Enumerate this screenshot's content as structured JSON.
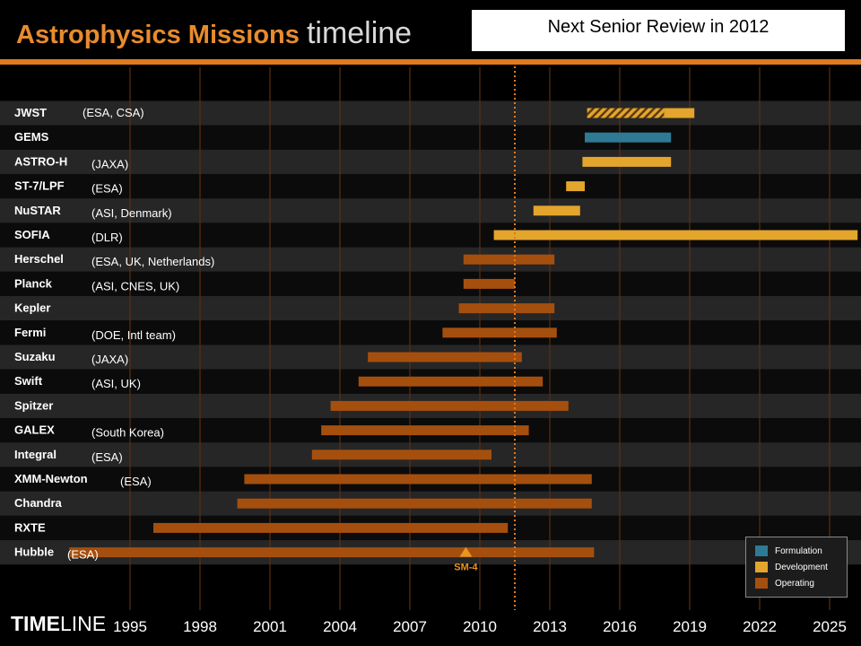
{
  "header": {
    "title_bold": "Astrophysics Missions",
    "title_light": "timeline",
    "review_note": "Next Senior Review in 2012"
  },
  "footer": {
    "logo_bold": "TIME",
    "logo_light": "LINE"
  },
  "colors": {
    "background": "#000000",
    "row_band": "#262626",
    "formulation": "#2e7a94",
    "development": "#e3a52c",
    "operating": "#a54f0e",
    "accent": "#e07a1f"
  },
  "legend": {
    "items": [
      {
        "label": "Formulation",
        "color": "#2e7a94"
      },
      {
        "label": "Development",
        "color": "#e3a52c"
      },
      {
        "label": "Operating",
        "color": "#a54f0e"
      }
    ]
  },
  "chart_data": {
    "type": "bar",
    "title": "Astrophysics Missions timeline",
    "x_ticks": [
      1995,
      1998,
      2001,
      2004,
      2007,
      2010,
      2013,
      2016,
      2019,
      2022,
      2025
    ],
    "xlim": [
      1992.4,
      2026.2
    ],
    "reference_line": {
      "value": 2011.5,
      "style": "dotted"
    },
    "annotations": [
      {
        "label": "SM-4",
        "x": 2009.4,
        "row": "Hubble"
      }
    ],
    "missions": [
      {
        "name": "JWST",
        "partners": "(ESA, CSA)",
        "segments": [
          {
            "phase": "formulation-development",
            "start": 2014.6,
            "end": 2017.9,
            "hatched": true
          },
          {
            "phase": "development",
            "start": 2017.9,
            "end": 2019.2
          }
        ]
      },
      {
        "name": "GEMS",
        "partners": "",
        "segments": [
          {
            "phase": "formulation",
            "start": 2014.5,
            "end": 2018.2
          }
        ]
      },
      {
        "name": "ASTRO-H",
        "partners": "(JAXA)",
        "segments": [
          {
            "phase": "development",
            "start": 2014.4,
            "end": 2018.2
          }
        ]
      },
      {
        "name": "ST-7/LPF",
        "partners": "(ESA)",
        "segments": [
          {
            "phase": "development",
            "start": 2013.7,
            "end": 2014.5
          }
        ]
      },
      {
        "name": "NuSTAR",
        "partners": "(ASI, Denmark)",
        "segments": [
          {
            "phase": "development",
            "start": 2012.3,
            "end": 2014.3
          }
        ]
      },
      {
        "name": "SOFIA",
        "partners": "(DLR)",
        "segments": [
          {
            "phase": "development",
            "start": 2010.6,
            "end": 2026.2
          }
        ]
      },
      {
        "name": "Herschel",
        "partners": "(ESA, UK, Netherlands)",
        "segments": [
          {
            "phase": "operating",
            "start": 2009.3,
            "end": 2013.2
          }
        ]
      },
      {
        "name": "Planck",
        "partners": "(ASI, CNES, UK)",
        "segments": [
          {
            "phase": "operating",
            "start": 2009.3,
            "end": 2011.5
          }
        ]
      },
      {
        "name": "Kepler",
        "partners": "",
        "segments": [
          {
            "phase": "operating",
            "start": 2009.1,
            "end": 2013.2
          }
        ]
      },
      {
        "name": "Fermi",
        "partners": "(DOE, Intl team)",
        "segments": [
          {
            "phase": "operating",
            "start": 2008.4,
            "end": 2013.3
          }
        ]
      },
      {
        "name": "Suzaku",
        "partners": "(JAXA)",
        "segments": [
          {
            "phase": "operating",
            "start": 2005.2,
            "end": 2011.8
          }
        ]
      },
      {
        "name": "Swift",
        "partners": "(ASI, UK)",
        "segments": [
          {
            "phase": "operating",
            "start": 2004.8,
            "end": 2012.7
          }
        ]
      },
      {
        "name": "Spitzer",
        "partners": "",
        "segments": [
          {
            "phase": "operating",
            "start": 2003.6,
            "end": 2013.8
          }
        ]
      },
      {
        "name": "GALEX",
        "partners": "(South Korea)",
        "segments": [
          {
            "phase": "operating",
            "start": 2003.2,
            "end": 2012.1
          }
        ]
      },
      {
        "name": "Integral",
        "partners": "(ESA)",
        "segments": [
          {
            "phase": "operating",
            "start": 2002.8,
            "end": 2010.5
          }
        ]
      },
      {
        "name": "XMM-Newton",
        "partners": "(ESA)",
        "segments": [
          {
            "phase": "operating",
            "start": 1999.9,
            "end": 2014.8
          }
        ]
      },
      {
        "name": "Chandra",
        "partners": "",
        "segments": [
          {
            "phase": "operating",
            "start": 1999.6,
            "end": 2014.8
          }
        ]
      },
      {
        "name": "RXTE",
        "partners": "",
        "segments": [
          {
            "phase": "operating",
            "start": 1996.0,
            "end": 2011.2
          }
        ]
      },
      {
        "name": "Hubble",
        "partners": "(ESA)",
        "segments": [
          {
            "phase": "operating",
            "start": 1992.4,
            "end": 2014.9
          }
        ]
      }
    ]
  }
}
